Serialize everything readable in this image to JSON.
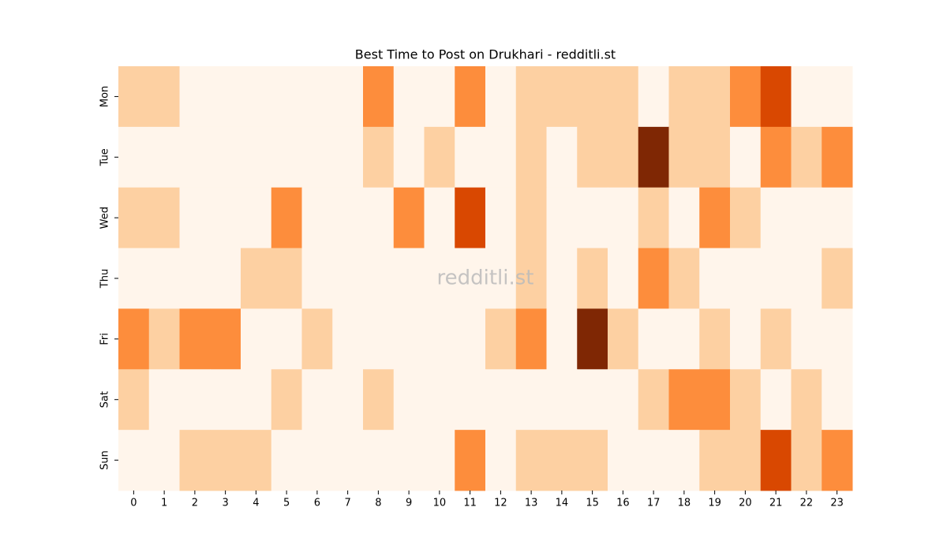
{
  "chart_data": {
    "type": "heatmap",
    "title": "Best Time to Post on Drukhari - redditli.st",
    "watermark": "redditli.st",
    "x_categories": [
      "0",
      "1",
      "2",
      "3",
      "4",
      "5",
      "6",
      "7",
      "8",
      "9",
      "10",
      "11",
      "12",
      "13",
      "14",
      "15",
      "16",
      "17",
      "18",
      "19",
      "20",
      "21",
      "22",
      "23"
    ],
    "y_categories": [
      "Mon",
      "Tue",
      "Wed",
      "Thu",
      "Fri",
      "Sat",
      "Sun"
    ],
    "values": [
      [
        1,
        1,
        0,
        0,
        0,
        0,
        0,
        0,
        2,
        0,
        0,
        2,
        0,
        1,
        1,
        1,
        1,
        0,
        1,
        1,
        2,
        3,
        0,
        0
      ],
      [
        0,
        0,
        0,
        0,
        0,
        0,
        0,
        0,
        1,
        0,
        1,
        0,
        0,
        1,
        0,
        1,
        1,
        4,
        1,
        1,
        0,
        2,
        1,
        2
      ],
      [
        1,
        1,
        0,
        0,
        0,
        2,
        0,
        0,
        0,
        2,
        0,
        3,
        0,
        1,
        0,
        0,
        0,
        1,
        0,
        2,
        1,
        0,
        0,
        0
      ],
      [
        0,
        0,
        0,
        0,
        1,
        1,
        0,
        0,
        0,
        0,
        0,
        0,
        0,
        1,
        0,
        1,
        0,
        2,
        1,
        0,
        0,
        0,
        0,
        1
      ],
      [
        2,
        1,
        2,
        2,
        0,
        0,
        1,
        0,
        0,
        0,
        0,
        0,
        1,
        2,
        0,
        4,
        1,
        0,
        0,
        1,
        0,
        1,
        0,
        0
      ],
      [
        1,
        0,
        0,
        0,
        0,
        1,
        0,
        0,
        1,
        0,
        0,
        0,
        0,
        0,
        0,
        0,
        0,
        1,
        2,
        2,
        1,
        0,
        1,
        0
      ],
      [
        0,
        0,
        1,
        1,
        1,
        0,
        0,
        0,
        0,
        0,
        0,
        2,
        0,
        1,
        1,
        1,
        0,
        0,
        0,
        1,
        1,
        3,
        1,
        2
      ]
    ],
    "colors": [
      "#fff5eb",
      "#fdd0a2",
      "#fd8d3c",
      "#d94801",
      "#7f2704"
    ]
  }
}
